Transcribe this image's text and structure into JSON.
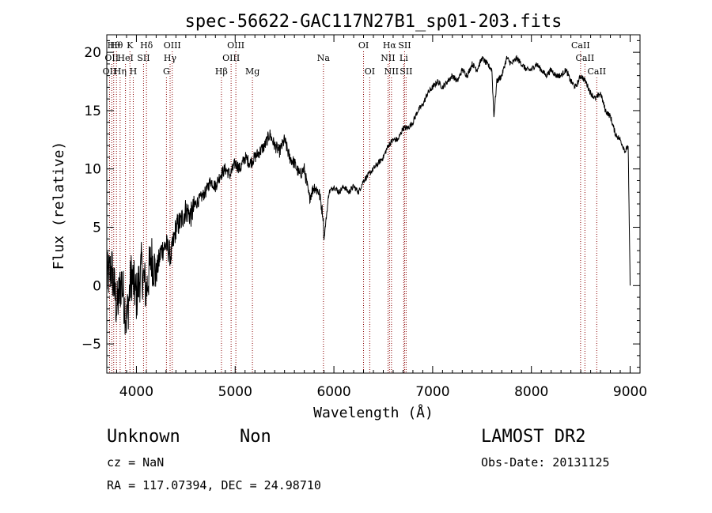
{
  "chart_data": {
    "type": "line",
    "title": "spec-56622-GAC117N27B1_sp01-203.fits",
    "xlabel": "Wavelength (Å)",
    "ylabel": "Flux (relative)",
    "xlim": [
      3700,
      9100
    ],
    "ylim": [
      -7.5,
      21.5
    ],
    "xticks": [
      4000,
      5000,
      6000,
      7000,
      8000,
      9000
    ],
    "yticks": [
      -5,
      0,
      5,
      10,
      15,
      20
    ],
    "grid": false,
    "series": [
      {
        "x": [
          3700,
          3750,
          3800,
          3850,
          3900,
          3950,
          4000,
          4050,
          4100,
          4150,
          4200,
          4250,
          4300,
          4350,
          4400,
          4450,
          4500,
          4550,
          4600,
          4650,
          4700,
          4750,
          4800,
          4850,
          4900,
          4950,
          5000,
          5050,
          5100,
          5150,
          5200,
          5250,
          5300,
          5350,
          5400,
          5450,
          5500,
          5550,
          5600,
          5650,
          5700,
          5750,
          5800,
          5850,
          5890,
          5900,
          5950,
          6000,
          6050,
          6100,
          6150,
          6200,
          6250,
          6300,
          6350,
          6400,
          6450,
          6500,
          6550,
          6600,
          6650,
          6700,
          6750,
          6800,
          6850,
          6900,
          6950,
          7000,
          7050,
          7100,
          7150,
          7200,
          7250,
          7300,
          7350,
          7400,
          7450,
          7500,
          7550,
          7600,
          7620,
          7650,
          7700,
          7750,
          7800,
          7850,
          7900,
          7950,
          8000,
          8050,
          8100,
          8150,
          8200,
          8250,
          8300,
          8350,
          8400,
          8450,
          8500,
          8550,
          8600,
          8650,
          8700,
          8750,
          8800,
          8850,
          8900,
          8950,
          8980,
          9000
        ],
        "y": [
          0.5,
          1.5,
          -2.0,
          0.5,
          -3.0,
          1.0,
          -1.0,
          1.5,
          -0.5,
          2.5,
          1.0,
          3.0,
          3.5,
          2.5,
          5.0,
          5.5,
          6.5,
          6.0,
          7.0,
          7.5,
          8.0,
          9.0,
          8.5,
          9.5,
          10.0,
          9.5,
          10.5,
          10.0,
          11.0,
          10.5,
          11.0,
          11.5,
          12.0,
          13.0,
          12.0,
          11.5,
          12.5,
          11.0,
          10.5,
          9.5,
          10.0,
          7.5,
          8.5,
          8.0,
          6.0,
          4.0,
          8.0,
          8.5,
          8.0,
          8.5,
          8.0,
          8.5,
          8.0,
          9.0,
          9.5,
          10.0,
          10.5,
          11.0,
          12.0,
          12.5,
          12.5,
          13.5,
          13.5,
          14.0,
          15.0,
          15.5,
          16.5,
          17.0,
          17.5,
          17.0,
          17.5,
          18.0,
          17.5,
          18.5,
          18.0,
          19.0,
          18.5,
          19.5,
          19.0,
          18.5,
          14.5,
          17.5,
          18.0,
          19.5,
          19.0,
          19.5,
          19.0,
          18.5,
          18.5,
          19.0,
          18.5,
          18.0,
          18.5,
          18.0,
          18.0,
          18.5,
          17.5,
          17.0,
          18.0,
          17.5,
          16.5,
          16.0,
          16.5,
          15.0,
          14.5,
          13.0,
          12.5,
          11.5,
          12.0,
          0.0
        ]
      }
    ],
    "lines": [
      {
        "wl": 3728,
        "label": "OII",
        "row": 2
      },
      {
        "wl": 3750,
        "label": "OII",
        "row": 1
      },
      {
        "wl": 3770,
        "label": "Hθ",
        "row": 0
      },
      {
        "wl": 3798,
        "label": "Hθ",
        "row": 0
      },
      {
        "wl": 3835,
        "label": "Hη",
        "row": 2
      },
      {
        "wl": 3889,
        "label": "HeI",
        "row": 1
      },
      {
        "wl": 3934,
        "label": "K",
        "row": 0
      },
      {
        "wl": 3968,
        "label": "H",
        "row": 2
      },
      {
        "wl": 4072,
        "label": "SII",
        "row": 1
      },
      {
        "wl": 4102,
        "label": "Hδ",
        "row": 0
      },
      {
        "wl": 4304,
        "label": "G",
        "row": 2
      },
      {
        "wl": 4341,
        "label": "Hγ",
        "row": 1
      },
      {
        "wl": 4363,
        "label": "OIII",
        "row": 0
      },
      {
        "wl": 4861,
        "label": "Hβ",
        "row": 2
      },
      {
        "wl": 4959,
        "label": "OIII",
        "row": 1
      },
      {
        "wl": 5007,
        "label": "OIII",
        "row": 0
      },
      {
        "wl": 5175,
        "label": "Mg",
        "row": 2
      },
      {
        "wl": 5894,
        "label": "Na",
        "row": 1
      },
      {
        "wl": 6300,
        "label": "OI",
        "row": 0
      },
      {
        "wl": 6363,
        "label": "OI",
        "row": 2
      },
      {
        "wl": 6548,
        "label": "NII",
        "row": 1
      },
      {
        "wl": 6563,
        "label": "Hα",
        "row": 0
      },
      {
        "wl": 6583,
        "label": "NII",
        "row": 2
      },
      {
        "wl": 6707,
        "label": "Li",
        "row": 1
      },
      {
        "wl": 6716,
        "label": "SII",
        "row": 0
      },
      {
        "wl": 6731,
        "label": "SII",
        "row": 2
      },
      {
        "wl": 8498,
        "label": "CaII",
        "row": 0
      },
      {
        "wl": 8542,
        "label": "CaII",
        "row": 1
      },
      {
        "wl": 8662,
        "label": "CaII",
        "row": 2
      }
    ],
    "colors": {
      "spectrum": "#000000",
      "line_markers": "#8b0000"
    }
  },
  "info": {
    "object_class": "Unknown",
    "subclass": "Non",
    "survey": "LAMOST DR2",
    "redshift": "cz = NaN",
    "obs_date": "Obs-Date: 20131125",
    "coords": "RA = 117.07394, DEC =  24.98710"
  }
}
